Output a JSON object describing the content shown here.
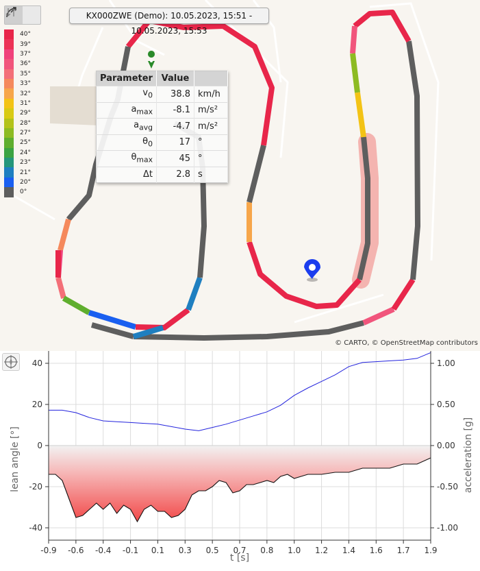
{
  "map": {
    "title": "KX000ZWE (Demo): 10.05.2023, 15:51 - 10.05.2023, 15:53",
    "attribution": "© CARTO, © OpenStreetMap contributors",
    "tools": [
      "lean-angle-tool-icon",
      "acceleration-tool-icon"
    ],
    "legend": [
      {
        "label": "40°",
        "color": "#e8264a"
      },
      {
        "label": "39°",
        "color": "#ec3356"
      },
      {
        "label": "37°",
        "color": "#f0417b"
      },
      {
        "label": "36°",
        "color": "#f1557c"
      },
      {
        "label": "35°",
        "color": "#f36f78"
      },
      {
        "label": "33°",
        "color": "#f5895c"
      },
      {
        "label": "32°",
        "color": "#f7a64a"
      },
      {
        "label": "31°",
        "color": "#f3c316"
      },
      {
        "label": "29°",
        "color": "#d8ca14"
      },
      {
        "label": "28°",
        "color": "#b3c21a"
      },
      {
        "label": "27°",
        "color": "#8dbb22"
      },
      {
        "label": "25°",
        "color": "#5fae2e"
      },
      {
        "label": "24°",
        "color": "#3ba342"
      },
      {
        "label": "23°",
        "color": "#25967a"
      },
      {
        "label": "21°",
        "color": "#1f7fc0"
      },
      {
        "label": "20°",
        "color": "#1a5ff0"
      },
      {
        "label": "0°",
        "color": "#5e5e5e"
      }
    ],
    "table": {
      "headers": [
        "Parameter",
        "Value",
        ""
      ],
      "rows": [
        {
          "name": "v",
          "sub": "0",
          "value": "38.8",
          "unit": "km/h"
        },
        {
          "name": "a",
          "sub": "max",
          "value": "-8.1",
          "unit": "m/s²"
        },
        {
          "name": "a",
          "sub": "avg",
          "value": "-4.7",
          "unit": "m/s²"
        },
        {
          "name": "θ",
          "sub": "0",
          "value": "17",
          "unit": "°"
        },
        {
          "name": "θ",
          "sub": "max",
          "value": "45",
          "unit": "°"
        },
        {
          "name": "Δt",
          "sub": "",
          "value": "2.8",
          "unit": "s"
        }
      ]
    }
  },
  "chart_data": {
    "type": "line",
    "xlabel": "t [s]",
    "ylabel_left": "lean angle [°]",
    "ylabel_right": "acceleration [g]",
    "xlim": [
      -0.9,
      1.9
    ],
    "ylim_left": [
      -46,
      46
    ],
    "ylim_right": [
      -1.15,
      1.15
    ],
    "x_ticks": [
      "-0.9",
      "-0.6",
      "-0.4",
      "-0.1",
      "0.1",
      "0.3",
      "0.5",
      "0.7",
      "0.8",
      "1.0",
      "1.2",
      "1.4",
      "1.6",
      "1.7",
      "1.9"
    ],
    "y_ticks_left": [
      40,
      20,
      0,
      -20,
      -40
    ],
    "y_ticks_right": [
      "1.00",
      "0.50",
      "0.00",
      "-0.50",
      "-1.00"
    ],
    "grid": true,
    "series": [
      {
        "axis": "left",
        "color": "#111111",
        "x": [
          -0.9,
          -0.85,
          -0.8,
          -0.75,
          -0.7,
          -0.65,
          -0.6,
          -0.55,
          -0.5,
          -0.45,
          -0.4,
          -0.35,
          -0.3,
          -0.25,
          -0.2,
          -0.15,
          -0.1,
          -0.05,
          0.0,
          0.05,
          0.1,
          0.15,
          0.2,
          0.25,
          0.3,
          0.35,
          0.4,
          0.45,
          0.5,
          0.55,
          0.6,
          0.65,
          0.7,
          0.75,
          0.8,
          0.85,
          0.9,
          0.95,
          1.0,
          1.1,
          1.2,
          1.3,
          1.4,
          1.5,
          1.6,
          1.7,
          1.8,
          1.9
        ],
        "y": [
          -14,
          -14,
          -17,
          -26,
          -35,
          -34,
          -31,
          -28,
          -31,
          -28,
          -33,
          -29,
          -31,
          -37,
          -31,
          -29,
          -32,
          -32,
          -35,
          -34,
          -31,
          -24,
          -22,
          -22,
          -20,
          -17,
          -18,
          -23,
          -22,
          -19,
          -19,
          -18,
          -17,
          -18,
          -15,
          -14,
          -16,
          -15,
          -14,
          -14,
          -13,
          -13,
          -11,
          -11,
          -11,
          -9,
          -9,
          -6
        ]
      },
      {
        "axis": "right",
        "color": "#2222dd",
        "x": [
          -0.9,
          -0.8,
          -0.7,
          -0.6,
          -0.5,
          -0.4,
          -0.3,
          -0.2,
          -0.1,
          0.0,
          0.1,
          0.2,
          0.3,
          0.4,
          0.5,
          0.6,
          0.7,
          0.8,
          0.9,
          1.0,
          1.1,
          1.2,
          1.3,
          1.4,
          1.5,
          1.6,
          1.7,
          1.8,
          1.9
        ],
        "y": [
          0.43,
          0.43,
          0.4,
          0.34,
          0.3,
          0.29,
          0.28,
          0.27,
          0.26,
          0.23,
          0.2,
          0.18,
          0.22,
          0.26,
          0.31,
          0.36,
          0.41,
          0.49,
          0.61,
          0.7,
          0.78,
          0.86,
          0.96,
          1.01,
          1.02,
          1.03,
          1.04,
          1.06,
          1.13
        ]
      }
    ]
  }
}
